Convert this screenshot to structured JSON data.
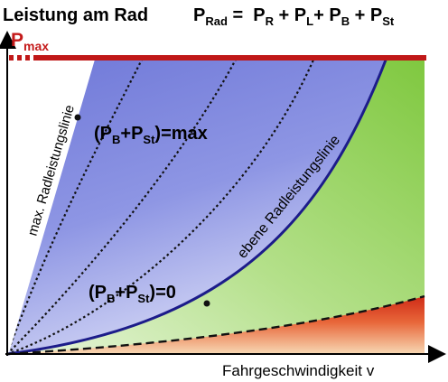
{
  "title": {
    "text": "Leistung am Rad",
    "formula_p": "P",
    "formula_sub": "Rad",
    "formula_eq": " =  ",
    "terms": [
      {
        "p": "P",
        "sub": "R",
        "op": " + "
      },
      {
        "p": "P",
        "sub": "L",
        "op": "+ "
      },
      {
        "p": "P",
        "sub": "B",
        "op": " + "
      },
      {
        "p": "P",
        "sub": "St",
        "op": ""
      }
    ]
  },
  "pmax": {
    "p": "P",
    "sub": "max"
  },
  "labels": {
    "max_radleistungslinie": "max. Radleistungslinie",
    "ebene_radleistungslinie": "ebene Radleistungslinie",
    "pb_open": "(P",
    "pb_sub": "B",
    "plus": "+P",
    "pst_sub": "St",
    "close_max": ")=max",
    "close_zero": ")=0"
  },
  "xlabel": "Fahrgeschwindigkeit v",
  "colors": {
    "pmax_line": "#c01818",
    "pmax_text": "#c41a1a",
    "blue": "#7a84dc",
    "green": "#8fcf55",
    "red": "#d83a1f",
    "curve": "#1c1c8a"
  }
}
